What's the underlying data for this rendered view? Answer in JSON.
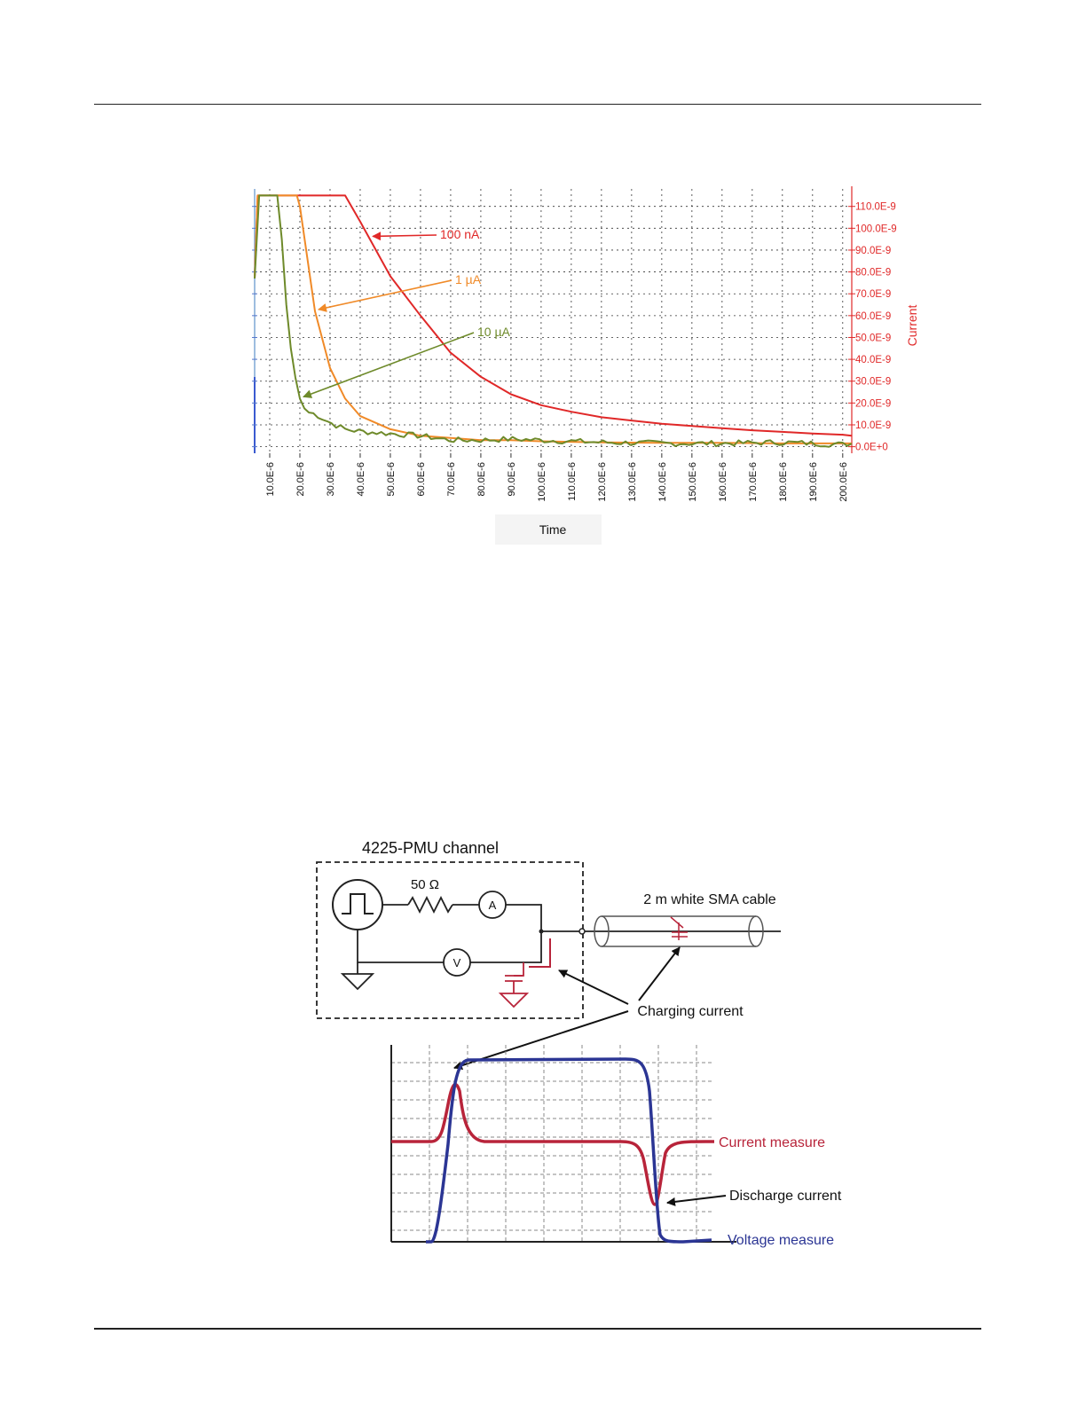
{
  "chart_data": [
    {
      "type": "line",
      "title": "",
      "xlabel": "Time",
      "ylabel": "Current",
      "x_ticks": [
        "10.0E-6",
        "20.0E-6",
        "30.0E-6",
        "40.0E-6",
        "50.0E-6",
        "60.0E-6",
        "70.0E-6",
        "80.0E-6",
        "90.0E-6",
        "100.0E-6",
        "110.0E-6",
        "120.0E-6",
        "130.0E-6",
        "140.0E-6",
        "150.0E-6",
        "160.0E-6",
        "170.0E-6",
        "180.0E-6",
        "190.0E-6",
        "200.0E-6"
      ],
      "y_ticks": [
        "0.0E+0",
        "10.0E-9",
        "20.0E-9",
        "30.0E-9",
        "40.0E-9",
        "50.0E-9",
        "60.0E-9",
        "70.0E-9",
        "80.0E-9",
        "90.0E-9",
        "100.0E-9",
        "110.0E-9"
      ],
      "xlim": [
        5e-06,
        0.000203
      ],
      "ylim": [
        -3e-09,
        1.18e-07
      ],
      "grid": true,
      "series": [
        {
          "name": "100 nA",
          "color": "#e02828",
          "x": [
            5e-06,
            6e-06,
            2e-05,
            3.5e-05,
            4e-05,
            5e-05,
            6e-05,
            7e-05,
            8e-05,
            9e-05,
            0.0001,
            0.00011,
            0.00012,
            0.00013,
            0.00014,
            0.00015,
            0.00016,
            0.00017,
            0.00018,
            0.00019,
            0.0002,
            0.000203
          ],
          "y": [
            7.7e-08,
            1.15e-07,
            1.15e-07,
            1.15e-07,
            1.03e-07,
            7.8e-08,
            6e-08,
            4.3e-08,
            3.2e-08,
            2.4e-08,
            1.9e-08,
            1.6e-08,
            1.35e-08,
            1.2e-08,
            1.05e-08,
            9.5e-09,
            8.5e-09,
            7.5e-09,
            6.8e-09,
            6e-09,
            5.5e-09,
            5e-09
          ]
        },
        {
          "name": "1 µA",
          "color": "#f08a28",
          "x": [
            5e-06,
            6e-06,
            1.9e-05,
            2e-05,
            2.5e-05,
            3e-05,
            3.5e-05,
            4e-05,
            5e-05,
            6e-05,
            7e-05,
            8e-05,
            9e-05,
            0.0001,
            0.00012,
            0.00014,
            0.00016,
            0.00018,
            0.0002,
            0.000203
          ],
          "y": [
            7.7e-08,
            1.15e-07,
            1.15e-07,
            1.1e-07,
            6.2e-08,
            3.6e-08,
            2.2e-08,
            1.4e-08,
            8e-09,
            5e-09,
            4e-09,
            3e-09,
            3e-09,
            2.5e-09,
            2e-09,
            1.8e-09,
            1.8e-09,
            1.5e-09,
            1.5e-09,
            1.5e-09
          ],
          "noise_amp": 0
        },
        {
          "name": "10 µA",
          "color": "#6e8a2a",
          "x": [
            5e-06,
            6e-06,
            1.3e-05,
            1.4e-05,
            1.6e-05,
            1.8e-05,
            2e-05,
            2.2e-05,
            2.5e-05,
            3e-05,
            3.5e-05,
            4e-05,
            5e-05,
            6e-05,
            7e-05,
            8e-05,
            9e-05,
            0.0001,
            0.00012,
            0.00014,
            0.00016,
            0.00018,
            0.0002,
            0.000203
          ],
          "y": [
            7.7e-08,
            1.15e-07,
            1.15e-07,
            9.5e-08,
            5.5e-08,
            3.5e-08,
            2.2e-08,
            1.6e-08,
            1.5e-08,
            1.1e-08,
            8e-09,
            7e-09,
            6e-09,
            5e-09,
            3e-09,
            3e-09,
            3.5e-09,
            3e-09,
            2e-09,
            1.5e-09,
            1.5e-09,
            2e-09,
            1e-09,
            1.5e-09
          ],
          "noise_amp": 1.3e-09
        }
      ],
      "annotations": [
        {
          "text": "100 nA",
          "series": 0,
          "at_x": 4.3e-05
        },
        {
          "text": "1 µA",
          "series": 1,
          "at_x": 2.5e-05
        },
        {
          "text": "10 µA",
          "series": 2,
          "at_x": 2e-05
        }
      ]
    },
    {
      "type": "line",
      "title": "",
      "xlabel": "",
      "ylabel": "",
      "grid": true,
      "series": [
        {
          "name": "Current measure",
          "color": "#b8243a"
        },
        {
          "name": "Voltage measure",
          "color": "#2b3594"
        }
      ]
    }
  ],
  "diagram": {
    "box_title": "4225-PMU channel",
    "resistor_label": "50 Ω",
    "ammeter_label": "A",
    "voltmeter_label": "V",
    "cable_label": "2 m white SMA cable",
    "charging_label": "Charging current",
    "current_label": "Current measure",
    "discharge_label": "Discharge current",
    "voltage_label": "Voltage measure"
  },
  "colors": {
    "red": "#e02828",
    "orange": "#f08a28",
    "green": "#6e8a2a",
    "current_trace": "#b8243a",
    "voltage_trace": "#2b3594"
  }
}
